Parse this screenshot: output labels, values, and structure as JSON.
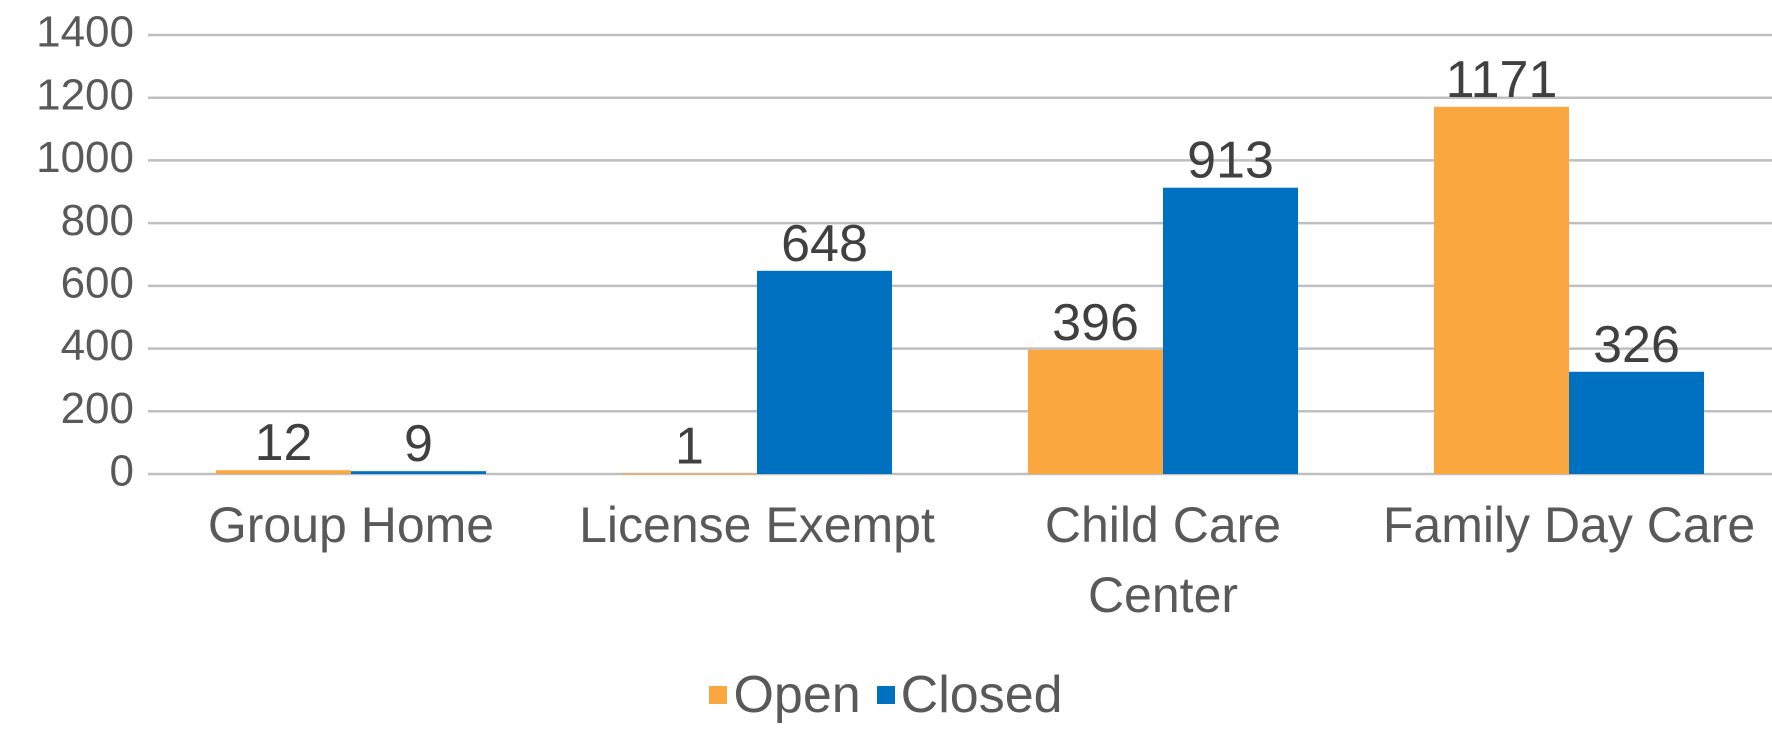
{
  "chart_data": {
    "type": "bar",
    "categories": [
      "Group Home",
      "License Exempt",
      "Child Care Center",
      "Family Day Care"
    ],
    "series": [
      {
        "name": "Open",
        "color": "#F9A73E",
        "values": [
          12,
          1,
          396,
          1171
        ]
      },
      {
        "name": "Closed",
        "color": "#0070C0",
        "values": [
          9,
          648,
          913,
          326
        ]
      }
    ],
    "ylim": [
      0,
      1400
    ],
    "yticks": [
      0,
      200,
      400,
      600,
      800,
      1000,
      1200,
      1400
    ],
    "grid": true,
    "legend": "bottom"
  }
}
